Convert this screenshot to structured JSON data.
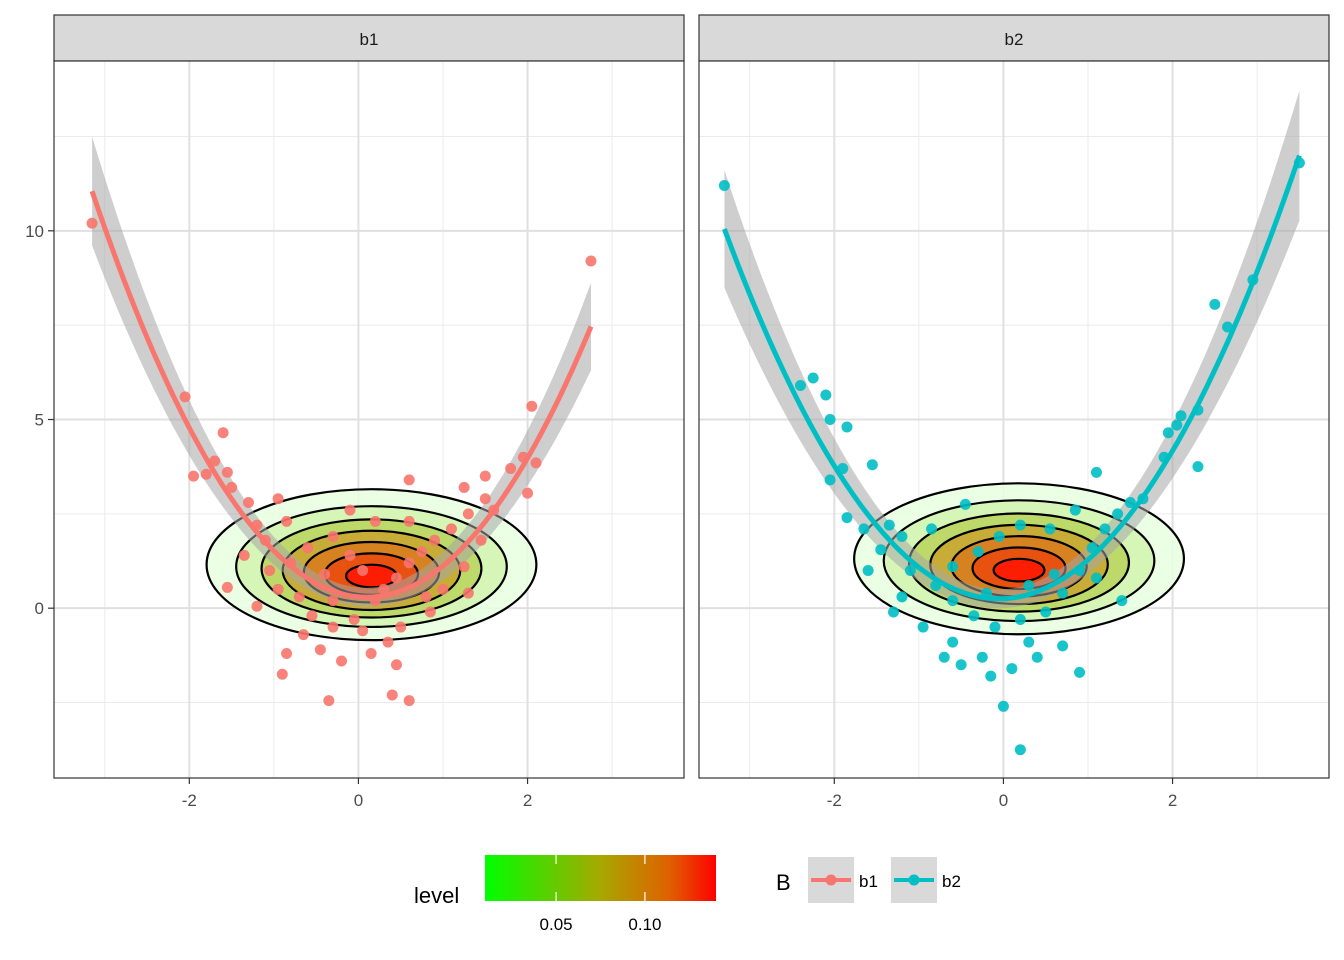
{
  "chart_data": {
    "type": "scatter",
    "panels": [
      "b1",
      "b2"
    ],
    "x_ticks": [
      -2,
      0,
      2
    ],
    "y_ticks": [
      0,
      5,
      10
    ],
    "xlim": [
      -3.6,
      3.85
    ],
    "ylim": [
      -4.5,
      14.5
    ],
    "grid": true,
    "colors": {
      "b1": "#F8766D",
      "b2": "#00BFC4"
    },
    "fit": {
      "b1": {
        "x_range": [
          -3.15,
          2.75
        ],
        "coef": [
          0.3,
          -0.2,
          1.02
        ]
      },
      "b2": {
        "x_range": [
          -3.3,
          3.5
        ],
        "coef": [
          0.25,
          0.1,
          0.93
        ]
      }
    },
    "series": [
      {
        "name": "b1",
        "points": [
          [
            -3.15,
            10.2
          ],
          [
            2.75,
            9.2
          ],
          [
            -2.05,
            5.6
          ],
          [
            -1.6,
            4.65
          ],
          [
            2.05,
            5.35
          ],
          [
            2.1,
            3.85
          ],
          [
            0.6,
            3.4
          ],
          [
            2.0,
            3.05
          ],
          [
            -1.95,
            3.5
          ],
          [
            -1.8,
            3.55
          ],
          [
            -1.5,
            3.2
          ],
          [
            -1.7,
            3.9
          ],
          [
            -1.55,
            3.6
          ],
          [
            -1.3,
            2.8
          ],
          [
            -0.95,
            2.9
          ],
          [
            -1.2,
            2.2
          ],
          [
            -0.85,
            2.3
          ],
          [
            -1.1,
            1.8
          ],
          [
            -1.35,
            1.4
          ],
          [
            -1.55,
            0.55
          ],
          [
            -1.2,
            0.05
          ],
          [
            -0.95,
            0.5
          ],
          [
            -0.8,
            1.2
          ],
          [
            -0.6,
            1.6
          ],
          [
            -0.3,
            1.9
          ],
          [
            -0.1,
            1.4
          ],
          [
            0.05,
            1.0
          ],
          [
            -0.4,
            0.9
          ],
          [
            -0.7,
            0.3
          ],
          [
            -0.55,
            -0.2
          ],
          [
            -0.3,
            -0.5
          ],
          [
            -0.05,
            -0.3
          ],
          [
            0.2,
            0.2
          ],
          [
            0.3,
            0.5
          ],
          [
            0.45,
            0.8
          ],
          [
            0.6,
            1.2
          ],
          [
            0.75,
            1.5
          ],
          [
            0.9,
            1.8
          ],
          [
            1.1,
            2.1
          ],
          [
            1.3,
            2.5
          ],
          [
            1.5,
            2.9
          ],
          [
            1.6,
            2.6
          ],
          [
            1.45,
            1.8
          ],
          [
            1.25,
            1.1
          ],
          [
            1.0,
            0.5
          ],
          [
            0.85,
            -0.1
          ],
          [
            0.5,
            -0.5
          ],
          [
            0.35,
            -0.9
          ],
          [
            0.15,
            -1.2
          ],
          [
            -0.2,
            -1.4
          ],
          [
            -0.45,
            -1.1
          ],
          [
            -0.85,
            -1.2
          ],
          [
            0.45,
            -1.5
          ],
          [
            -0.9,
            -1.75
          ],
          [
            -0.35,
            -2.45
          ],
          [
            0.4,
            -2.3
          ],
          [
            0.6,
            -2.45
          ],
          [
            1.25,
            3.2
          ],
          [
            1.5,
            3.5
          ],
          [
            1.8,
            3.7
          ],
          [
            1.95,
            4.0
          ],
          [
            0.6,
            2.3
          ],
          [
            -0.1,
            2.6
          ],
          [
            0.2,
            2.3
          ],
          [
            -1.05,
            1.0
          ],
          [
            -0.3,
            0.2
          ],
          [
            0.05,
            -0.6
          ],
          [
            -0.65,
            -0.7
          ],
          [
            1.3,
            0.4
          ],
          [
            0.8,
            0.3
          ]
        ]
      },
      {
        "name": "b2",
        "points": [
          [
            -3.3,
            11.2
          ],
          [
            3.5,
            11.8
          ],
          [
            2.95,
            8.7
          ],
          [
            2.5,
            8.05
          ],
          [
            2.65,
            7.45
          ],
          [
            -2.4,
            5.9
          ],
          [
            -2.25,
            6.1
          ],
          [
            -2.1,
            5.65
          ],
          [
            -2.05,
            5.0
          ],
          [
            -1.85,
            4.8
          ],
          [
            2.1,
            5.1
          ],
          [
            2.3,
            5.25
          ],
          [
            2.05,
            4.85
          ],
          [
            1.95,
            4.65
          ],
          [
            1.9,
            4.0
          ],
          [
            2.3,
            3.75
          ],
          [
            -2.05,
            3.4
          ],
          [
            -1.9,
            3.7
          ],
          [
            -1.55,
            3.8
          ],
          [
            -1.85,
            2.4
          ],
          [
            -1.65,
            2.1
          ],
          [
            -1.35,
            2.2
          ],
          [
            -1.2,
            1.9
          ],
          [
            -0.85,
            2.1
          ],
          [
            -0.45,
            2.75
          ],
          [
            -1.45,
            1.55
          ],
          [
            -1.1,
            1.0
          ],
          [
            -1.2,
            0.3
          ],
          [
            -0.8,
            0.6
          ],
          [
            -0.6,
            0.2
          ],
          [
            -0.35,
            -0.2
          ],
          [
            -0.1,
            -0.5
          ],
          [
            0.2,
            -0.3
          ],
          [
            0.5,
            -0.1
          ],
          [
            0.7,
            0.4
          ],
          [
            0.9,
            1.0
          ],
          [
            1.05,
            1.6
          ],
          [
            1.2,
            2.1
          ],
          [
            1.35,
            2.5
          ],
          [
            1.5,
            2.8
          ],
          [
            1.65,
            2.9
          ],
          [
            1.1,
            3.6
          ],
          [
            0.85,
            2.6
          ],
          [
            0.55,
            2.1
          ],
          [
            0.2,
            2.2
          ],
          [
            -0.05,
            1.9
          ],
          [
            -0.3,
            1.5
          ],
          [
            -0.6,
            1.1
          ],
          [
            -1.3,
            -0.1
          ],
          [
            -0.95,
            -0.5
          ],
          [
            -0.6,
            -0.9
          ],
          [
            -0.25,
            -1.3
          ],
          [
            0.1,
            -1.6
          ],
          [
            0.4,
            -1.3
          ],
          [
            0.7,
            -1.0
          ],
          [
            0.9,
            -1.7
          ],
          [
            -0.15,
            -1.8
          ],
          [
            0.0,
            -2.6
          ],
          [
            0.2,
            -3.75
          ],
          [
            -0.5,
            -1.5
          ],
          [
            0.3,
            -0.9
          ],
          [
            1.4,
            0.2
          ],
          [
            1.1,
            0.8
          ],
          [
            -1.6,
            1.0
          ],
          [
            -0.7,
            -1.3
          ],
          [
            0.6,
            0.9
          ],
          [
            -0.2,
            0.4
          ],
          [
            0.3,
            0.6
          ]
        ]
      }
    ],
    "density_levels": [
      "0.02",
      "0.04",
      "0.06",
      "0.08",
      "0.10",
      "0.12",
      "0.14"
    ],
    "legend": {
      "level_title": "level",
      "level_ticks": [
        "0.05",
        "0.10"
      ],
      "level_tick_values": [
        0.05,
        0.1
      ],
      "level_range": [
        0.01,
        0.14
      ],
      "level_colors": [
        "#00FF00",
        "#FF0000"
      ],
      "group_title": "B",
      "group_entries": [
        "b1",
        "b2"
      ]
    }
  }
}
